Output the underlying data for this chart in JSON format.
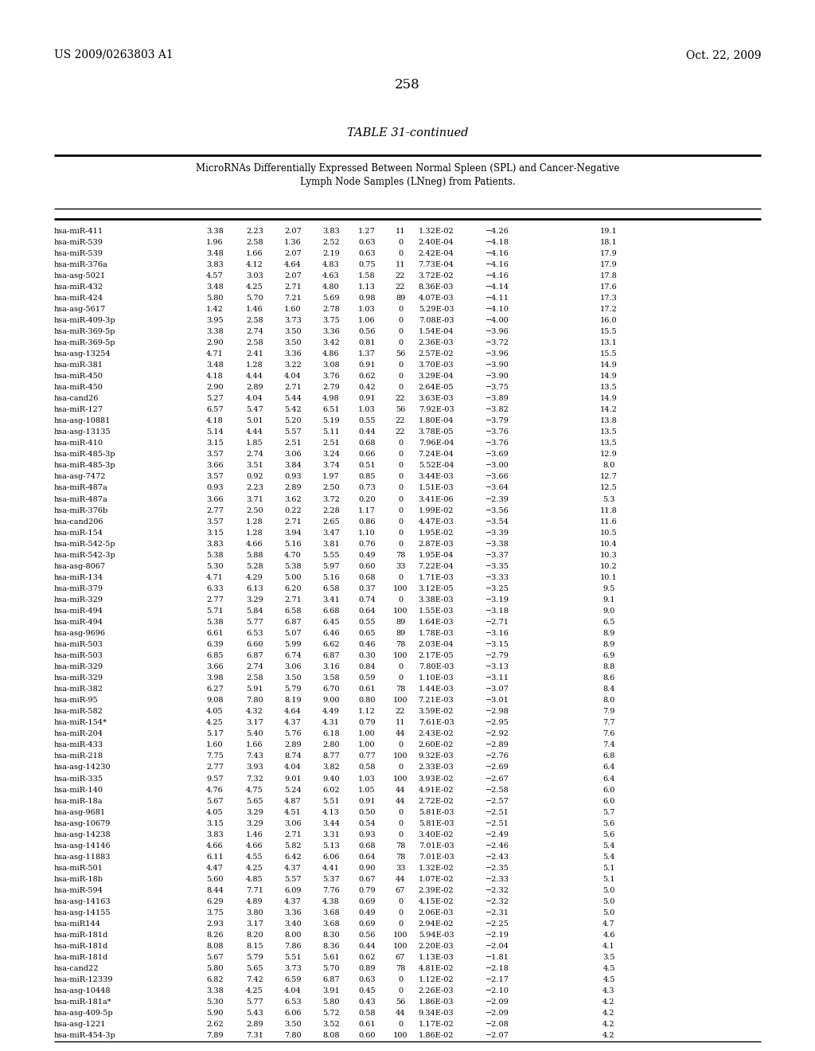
{
  "header_left": "US 2009/0263803 A1",
  "header_right": "Oct. 22, 2009",
  "page_number": "258",
  "table_title": "TABLE 31-continued",
  "table_subtitle1": "MicroRNAs Differentially Expressed Between Normal Spleen (SPL) and Cancer-Negative",
  "table_subtitle2": "Lymph Node Samples (LNneg) from Patients.",
  "rows": [
    [
      "hsa-miR-411",
      "3.38",
      "2.23",
      "2.07",
      "3.83",
      "1.27",
      "11",
      "1.32E-02",
      "−4.26",
      "19.1"
    ],
    [
      "hsa-miR-539",
      "1.96",
      "2.58",
      "1.36",
      "2.52",
      "0.63",
      "0",
      "2.40E-04",
      "−4.18",
      "18.1"
    ],
    [
      "hsa-miR-539",
      "3.48",
      "1.66",
      "2.07",
      "2.19",
      "0.63",
      "0",
      "2.42E-04",
      "−4.16",
      "17.9"
    ],
    [
      "hsa-miR-376a",
      "3.83",
      "4.12",
      "4.64",
      "4.83",
      "0.75",
      "11",
      "7.73E-04",
      "−4.16",
      "17.9"
    ],
    [
      "hsa-asg-5021",
      "4.57",
      "3.03",
      "2.07",
      "4.63",
      "1.58",
      "22",
      "3.72E-02",
      "−4.16",
      "17.8"
    ],
    [
      "hsa-miR-432",
      "3.48",
      "4.25",
      "2.71",
      "4.80",
      "1.13",
      "22",
      "8.36E-03",
      "−4.14",
      "17.6"
    ],
    [
      "hsa-miR-424",
      "5.80",
      "5.70",
      "7.21",
      "5.69",
      "0.98",
      "89",
      "4.07E-03",
      "−4.11",
      "17.3"
    ],
    [
      "hsa-asg-5617",
      "1.42",
      "1.46",
      "1.60",
      "2.78",
      "1.03",
      "0",
      "5.29E-03",
      "−4.10",
      "17.2"
    ],
    [
      "hsa-miR-409-3p",
      "3.95",
      "2.58",
      "3.73",
      "3.75",
      "1.06",
      "0",
      "7.08E-03",
      "−4.00",
      "16.0"
    ],
    [
      "hsa-miR-369-5p",
      "3.38",
      "2.74",
      "3.50",
      "3.36",
      "0.56",
      "0",
      "1.54E-04",
      "−3.96",
      "15.5"
    ],
    [
      "hsa-miR-369-5p",
      "2.90",
      "2.58",
      "3.50",
      "3.42",
      "0.81",
      "0",
      "2.36E-03",
      "−3.72",
      "13.1"
    ],
    [
      "hsa-asg-13254",
      "4.71",
      "2.41",
      "3.36",
      "4.86",
      "1.37",
      "56",
      "2.57E-02",
      "−3.96",
      "15.5"
    ],
    [
      "hsa-miR-381",
      "3.48",
      "1.28",
      "3.22",
      "3.08",
      "0.91",
      "0",
      "3.70E-03",
      "−3.90",
      "14.9"
    ],
    [
      "hsa-miR-450",
      "4.18",
      "4.44",
      "4.04",
      "3.76",
      "0.62",
      "0",
      "3.29E-04",
      "−3.90",
      "14.9"
    ],
    [
      "hsa-miR-450",
      "2.90",
      "2.89",
      "2.71",
      "2.79",
      "0.42",
      "0",
      "2.64E-05",
      "−3.75",
      "13.5"
    ],
    [
      "hsa-cand26",
      "5.27",
      "4.04",
      "5.44",
      "4.98",
      "0.91",
      "22",
      "3.63E-03",
      "−3.89",
      "14.9"
    ],
    [
      "hsa-miR-127",
      "6.57",
      "5.47",
      "5.42",
      "6.51",
      "1.03",
      "56",
      "7.92E-03",
      "−3.82",
      "14.2"
    ],
    [
      "hsa-asg-10881",
      "4.18",
      "5.01",
      "5.20",
      "5.19",
      "0.55",
      "22",
      "1.80E-04",
      "−3.79",
      "13.8"
    ],
    [
      "hsa-asg-13135",
      "5.14",
      "4.44",
      "5.57",
      "5.11",
      "0.44",
      "22",
      "3.78E-05",
      "−3.76",
      "13.5"
    ],
    [
      "hsa-miR-410",
      "3.15",
      "1.85",
      "2.51",
      "2.51",
      "0.68",
      "0",
      "7.96E-04",
      "−3.76",
      "13.5"
    ],
    [
      "hsa-miR-485-3p",
      "3.57",
      "2.74",
      "3.06",
      "3.24",
      "0.66",
      "0",
      "7.24E-04",
      "−3.69",
      "12.9"
    ],
    [
      "hsa-miR-485-3p",
      "3.66",
      "3.51",
      "3.84",
      "3.74",
      "0.51",
      "0",
      "5.52E-04",
      "−3.00",
      "8.0"
    ],
    [
      "hsa-asg-7472",
      "3.57",
      "0.92",
      "0.93",
      "1.97",
      "0.85",
      "0",
      "3.44E-03",
      "−3.66",
      "12.7"
    ],
    [
      "hsa-miR-487a",
      "0.93",
      "2.23",
      "2.89",
      "2.50",
      "0.73",
      "0",
      "1.51E-03",
      "−3.64",
      "12.5"
    ],
    [
      "hsa-miR-487a",
      "3.66",
      "3.71",
      "3.62",
      "3.72",
      "0.20",
      "0",
      "3.41E-06",
      "−2.39",
      "5.3"
    ],
    [
      "hsa-miR-376b",
      "2.77",
      "2.50",
      "0.22",
      "2.28",
      "1.17",
      "0",
      "1.99E-02",
      "−3.56",
      "11.8"
    ],
    [
      "hsa-cand206",
      "3.57",
      "1.28",
      "2.71",
      "2.65",
      "0.86",
      "0",
      "4.47E-03",
      "−3.54",
      "11.6"
    ],
    [
      "hsa-miR-154",
      "3.15",
      "1.28",
      "3.94",
      "3.47",
      "1.10",
      "0",
      "1.95E-02",
      "−3.39",
      "10.5"
    ],
    [
      "hsa-miR-542-5p",
      "3.83",
      "4.66",
      "5.16",
      "3.81",
      "0.76",
      "0",
      "2.87E-03",
      "−3.38",
      "10.4"
    ],
    [
      "hsa-miR-542-3p",
      "5.38",
      "5.88",
      "4.70",
      "5.55",
      "0.49",
      "78",
      "1.95E-04",
      "−3.37",
      "10.3"
    ],
    [
      "hsa-asg-8067",
      "5.30",
      "5.28",
      "5.38",
      "5.97",
      "0.60",
      "33",
      "7.22E-04",
      "−3.35",
      "10.2"
    ],
    [
      "hsa-miR-134",
      "4.71",
      "4.29",
      "5.00",
      "5.16",
      "0.68",
      "0",
      "1.71E-03",
      "−3.33",
      "10.1"
    ],
    [
      "hsa-miR-379",
      "6.33",
      "6.13",
      "6.20",
      "6.58",
      "0.37",
      "100",
      "3.12E-05",
      "−3.25",
      "9.5"
    ],
    [
      "hsa-miR-329",
      "2.77",
      "3.29",
      "2.71",
      "3.41",
      "0.74",
      "0",
      "3.38E-03",
      "−3.19",
      "9.1"
    ],
    [
      "hsa-miR-494",
      "5.71",
      "5.84",
      "6.58",
      "6.68",
      "0.64",
      "100",
      "1.55E-03",
      "−3.18",
      "9.0"
    ],
    [
      "hsa-miR-494",
      "5.38",
      "5.77",
      "6.87",
      "6.45",
      "0.55",
      "89",
      "1.64E-03",
      "−2.71",
      "6.5"
    ],
    [
      "hsa-asg-9696",
      "6.61",
      "6.53",
      "5.07",
      "6.46",
      "0.65",
      "89",
      "1.78E-03",
      "−3.16",
      "8.9"
    ],
    [
      "hsa-miR-503",
      "6.39",
      "6.60",
      "5.99",
      "6.62",
      "0.46",
      "78",
      "2.03E-04",
      "−3.15",
      "8.9"
    ],
    [
      "hsa-miR-503",
      "6.85",
      "6.87",
      "6.74",
      "6.87",
      "0.30",
      "100",
      "2.17E-05",
      "−2.79",
      "6.9"
    ],
    [
      "hsa-miR-329",
      "3.66",
      "2.74",
      "3.06",
      "3.16",
      "0.84",
      "0",
      "7.80E-03",
      "−3.13",
      "8.8"
    ],
    [
      "hsa-miR-329",
      "3.98",
      "2.58",
      "3.50",
      "3.58",
      "0.59",
      "0",
      "1.10E-03",
      "−3.11",
      "8.6"
    ],
    [
      "hsa-miR-382",
      "6.27",
      "5.91",
      "5.79",
      "6.70",
      "0.61",
      "78",
      "1.44E-03",
      "−3.07",
      "8.4"
    ],
    [
      "hsa-miR-95",
      "9.08",
      "7.80",
      "8.19",
      "9.00",
      "0.80",
      "100",
      "7.21E-03",
      "−3.01",
      "8.0"
    ],
    [
      "hsa-miR-582",
      "4.05",
      "4.32",
      "4.64",
      "4.49",
      "1.12",
      "22",
      "3.59E-02",
      "−2.98",
      "7.9"
    ],
    [
      "hsa-miR-154*",
      "4.25",
      "3.17",
      "4.37",
      "4.31",
      "0.79",
      "11",
      "7.61E-03",
      "−2.95",
      "7.7"
    ],
    [
      "hsa-miR-204",
      "5.17",
      "5.40",
      "5.76",
      "6.18",
      "1.00",
      "44",
      "2.43E-02",
      "−2.92",
      "7.6"
    ],
    [
      "hsa-miR-433",
      "1.60",
      "1.66",
      "2.89",
      "2.80",
      "1.00",
      "0",
      "2.60E-02",
      "−2.89",
      "7.4"
    ],
    [
      "hsa-miR-218",
      "7.75",
      "7.43",
      "8.74",
      "8.77",
      "0.77",
      "100",
      "9.32E-03",
      "−2.76",
      "6.8"
    ],
    [
      "hsa-asg-14230",
      "2.77",
      "3.93",
      "4.04",
      "3.82",
      "0.58",
      "0",
      "2.33E-03",
      "−2.69",
      "6.4"
    ],
    [
      "hsa-miR-335",
      "9.57",
      "7.32",
      "9.01",
      "9.40",
      "1.03",
      "100",
      "3.93E-02",
      "−2.67",
      "6.4"
    ],
    [
      "hsa-miR-140",
      "4.76",
      "4.75",
      "5.24",
      "6.02",
      "1.05",
      "44",
      "4.91E-02",
      "−2.58",
      "6.0"
    ],
    [
      "hsa-miR-18a",
      "5.67",
      "5.65",
      "4.87",
      "5.51",
      "0.91",
      "44",
      "2.72E-02",
      "−2.57",
      "6.0"
    ],
    [
      "hsa-asg-9681",
      "4.05",
      "3.29",
      "4.51",
      "4.13",
      "0.50",
      "0",
      "5.81E-03",
      "−2.51",
      "5.7"
    ],
    [
      "hsa-asg-10679",
      "3.15",
      "3.29",
      "3.06",
      "3.44",
      "0.54",
      "0",
      "5.81E-03",
      "−2.51",
      "5.6"
    ],
    [
      "hsa-asg-14238",
      "3.83",
      "1.46",
      "2.71",
      "3.31",
      "0.93",
      "0",
      "3.40E-02",
      "−2.49",
      "5.6"
    ],
    [
      "hsa-asg-14146",
      "4.66",
      "4.66",
      "5.82",
      "5.13",
      "0.68",
      "78",
      "7.01E-03",
      "−2.46",
      "5.4"
    ],
    [
      "hsa-asg-11883",
      "6.11",
      "4.55",
      "6.42",
      "6.06",
      "0.64",
      "78",
      "7.01E-03",
      "−2.43",
      "5.4"
    ],
    [
      "hsa-miR-501",
      "4.47",
      "4.25",
      "4.37",
      "4.41",
      "0.90",
      "33",
      "1.32E-02",
      "−2.35",
      "5.1"
    ],
    [
      "hsa-miR-18b",
      "5.60",
      "4.85",
      "5.57",
      "5.37",
      "0.67",
      "44",
      "1.07E-02",
      "−2.33",
      "5.1"
    ],
    [
      "hsa-miR-594",
      "8.44",
      "7.71",
      "6.09",
      "7.76",
      "0.79",
      "67",
      "2.39E-02",
      "−2.32",
      "5.0"
    ],
    [
      "hsa-asg-14163",
      "6.29",
      "4.89",
      "4.37",
      "4.38",
      "0.69",
      "0",
      "4.15E-02",
      "−2.32",
      "5.0"
    ],
    [
      "hsa-asg-14155",
      "3.75",
      "3.80",
      "3.36",
      "3.68",
      "0.49",
      "0",
      "2.06E-03",
      "−2.31",
      "5.0"
    ],
    [
      "hsa-miR144",
      "2.93",
      "3.17",
      "3.40",
      "3.68",
      "0.69",
      "0",
      "2.94E-02",
      "−2.25",
      "4.7"
    ],
    [
      "hsa-miR-181d",
      "8.26",
      "8.20",
      "8.00",
      "8.30",
      "0.56",
      "100",
      "5.94E-03",
      "−2.19",
      "4.6"
    ],
    [
      "hsa-miR-181d",
      "8.08",
      "8.15",
      "7.86",
      "8.36",
      "0.44",
      "100",
      "2.20E-03",
      "−2.04",
      "4.1"
    ],
    [
      "hsa-miR-181d",
      "5.67",
      "5.79",
      "5.51",
      "5.61",
      "0.62",
      "67",
      "1.13E-03",
      "−1.81",
      "3.5"
    ],
    [
      "hsa-cand22",
      "5.80",
      "5.65",
      "3.73",
      "5.70",
      "0.89",
      "78",
      "4.81E-02",
      "−2.18",
      "4.5"
    ],
    [
      "hsa-miR-12339",
      "6.82",
      "7.42",
      "6.59",
      "6.87",
      "0.63",
      "0",
      "1.12E-02",
      "−2.17",
      "4.5"
    ],
    [
      "hsa-asg-10448",
      "3.38",
      "4.25",
      "4.04",
      "3.91",
      "0.45",
      "0",
      "2.26E-03",
      "−2.10",
      "4.3"
    ],
    [
      "hsa-miR-181a*",
      "5.30",
      "5.77",
      "6.53",
      "5.80",
      "0.43",
      "56",
      "1.86E-03",
      "−2.09",
      "4.2"
    ],
    [
      "hsa-asg-409-5p",
      "5.90",
      "5.43",
      "6.06",
      "5.72",
      "0.58",
      "44",
      "9.34E-03",
      "−2.09",
      "4.2"
    ],
    [
      "hsa-asg-1221",
      "2.62",
      "2.89",
      "3.50",
      "3.52",
      "0.61",
      "0",
      "1.17E-02",
      "−2.08",
      "4.2"
    ],
    [
      "hsa-miR-454-3p",
      "7.89",
      "7.31",
      "7.80",
      "8.08",
      "0.60",
      "100",
      "1.86E-02",
      "−2.07",
      "4.2"
    ]
  ]
}
